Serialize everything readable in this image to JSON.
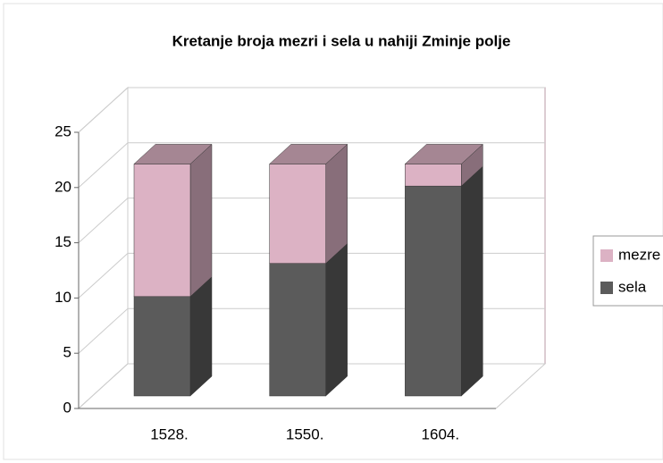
{
  "chart_data": {
    "type": "bar3d_stacked",
    "title": "Kretanje broja mezri i sela u nahiji Zminje polje",
    "categories": [
      "1528.",
      "1550.",
      "1604."
    ],
    "series": [
      {
        "name": "sela",
        "color": "#5b5b5b",
        "values": [
          9,
          12,
          19
        ]
      },
      {
        "name": "mezre",
        "color": "#dcb2c4",
        "values": [
          12,
          9,
          2
        ]
      }
    ],
    "ylim": [
      0,
      25
    ],
    "yticks": [
      0,
      5,
      10,
      15,
      20,
      25
    ],
    "grid": true,
    "legend": "right"
  }
}
